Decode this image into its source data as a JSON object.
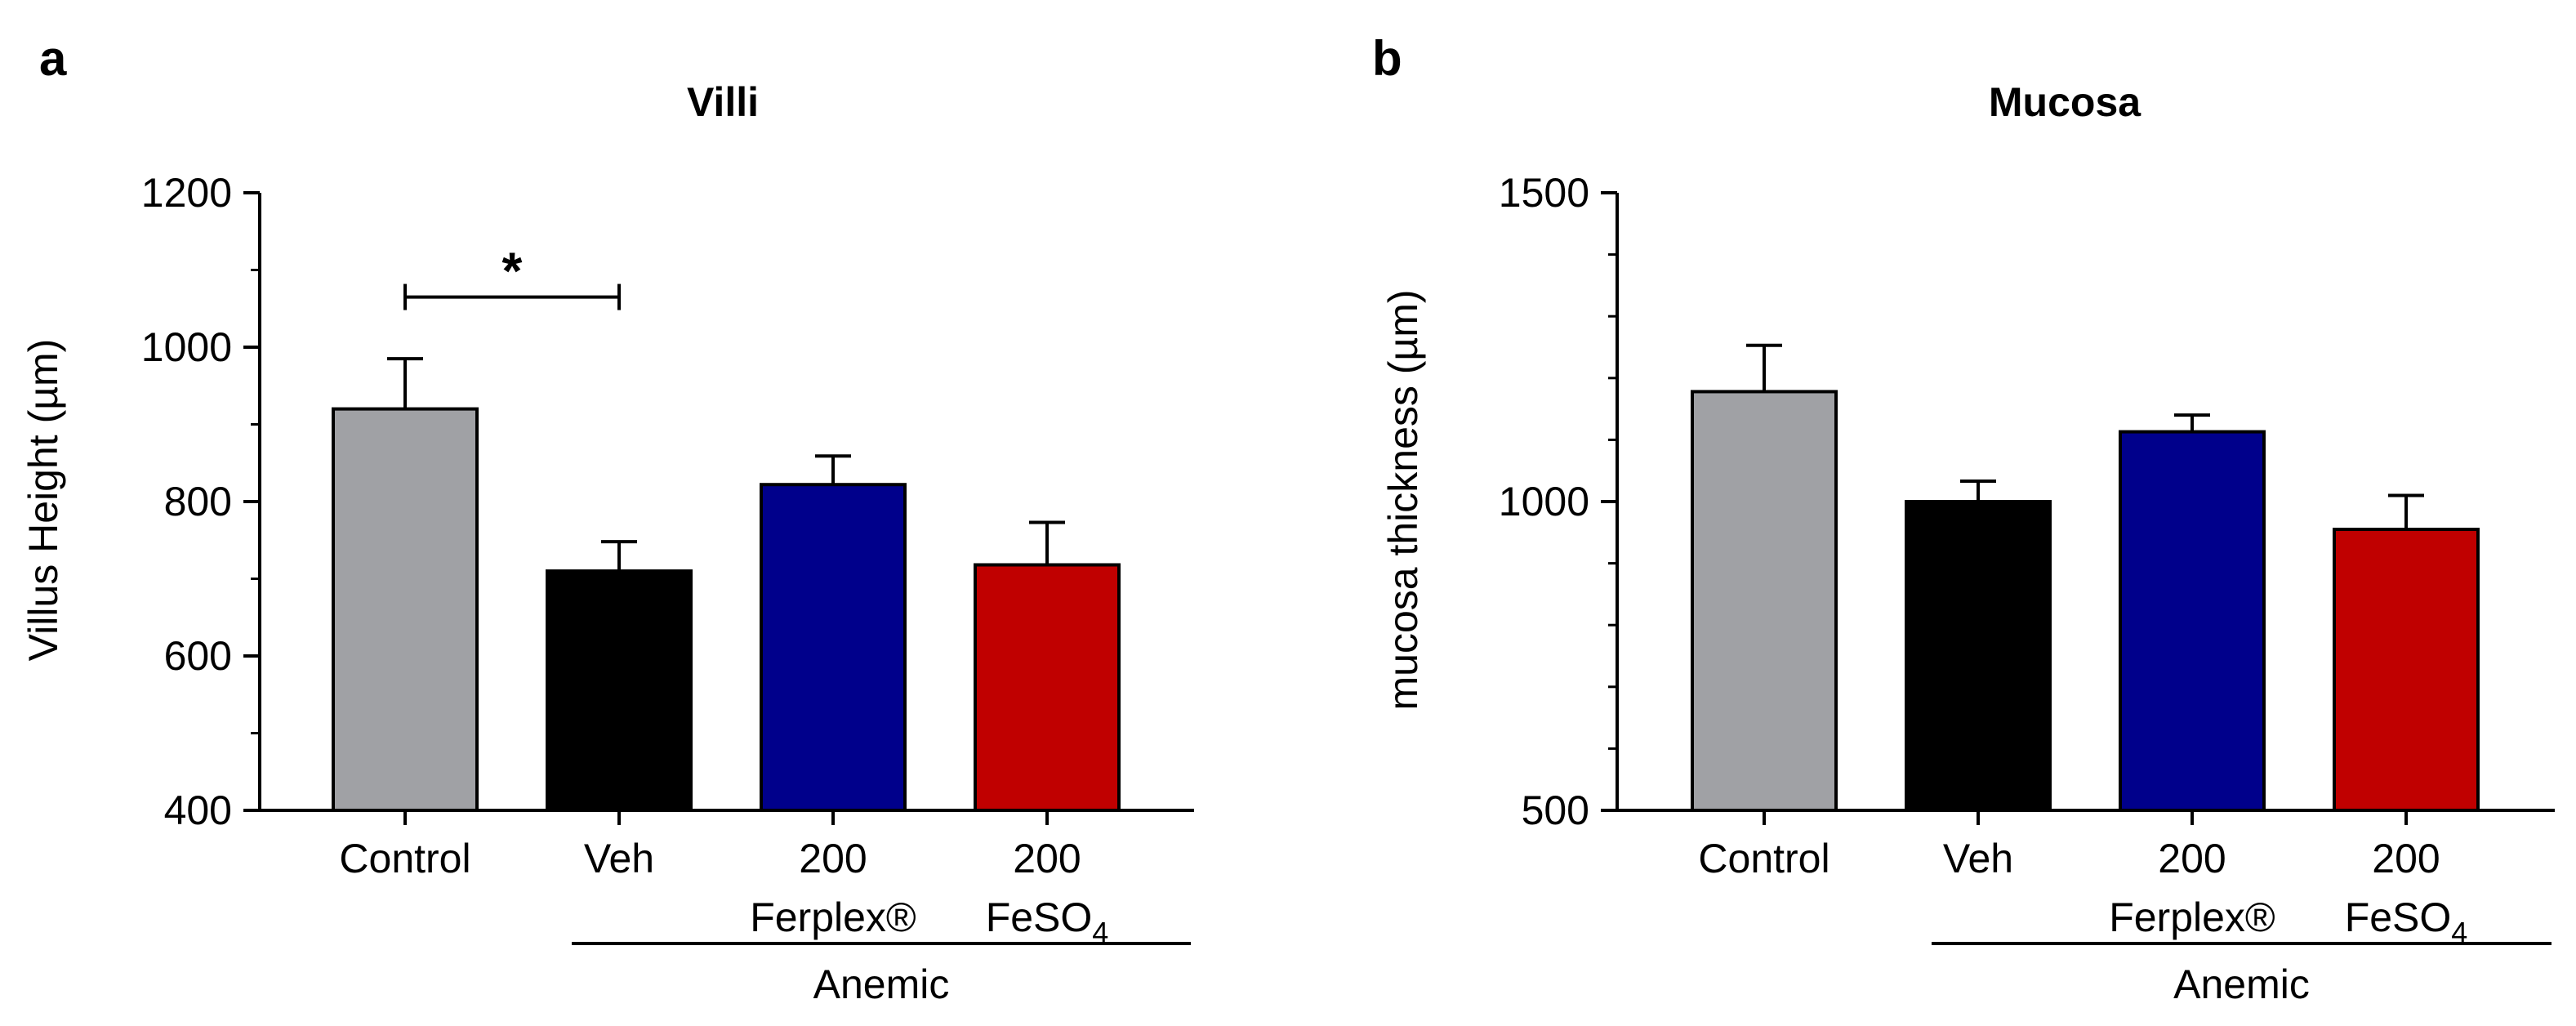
{
  "chart_data": [
    {
      "panel": "a",
      "type": "bar",
      "title": "Villi",
      "ylabel": "Villus Height (µm)",
      "xlabel": "",
      "ylim": [
        400,
        1200
      ],
      "yticks": [
        400,
        600,
        800,
        1000,
        1200
      ],
      "categories": [
        {
          "line1": "Control",
          "line2": "",
          "sub": ""
        },
        {
          "line1": "Veh",
          "line2": "",
          "sub": ""
        },
        {
          "line1": "200",
          "line2": "Ferplex®",
          "sub": ""
        },
        {
          "line1": "200",
          "line2": "FeSO",
          "sub": "4"
        }
      ],
      "values": [
        920,
        710,
        822,
        718
      ],
      "errors": [
        65,
        38,
        37,
        55
      ],
      "colors": [
        "#a0a1a5",
        "#000000",
        "#00008b",
        "#c00000"
      ],
      "group_label": "Anemic",
      "significance": {
        "from": 0,
        "to": 1,
        "label": "*",
        "y": 1065
      }
    },
    {
      "panel": "b",
      "type": "bar",
      "title": "Mucosa",
      "ylabel": "mucosa thickness (µm)",
      "xlabel": "",
      "ylim": [
        500,
        1500
      ],
      "yticks": [
        500,
        1000,
        1500
      ],
      "categories": [
        {
          "line1": "Control",
          "line2": "",
          "sub": ""
        },
        {
          "line1": "Veh",
          "line2": "",
          "sub": ""
        },
        {
          "line1": "200",
          "line2": "Ferplex®",
          "sub": ""
        },
        {
          "line1": "200",
          "line2": "FeSO",
          "sub": "4"
        }
      ],
      "values": [
        1178,
        1000,
        1113,
        955
      ],
      "errors": [
        75,
        33,
        27,
        55
      ],
      "colors": [
        "#a0a1a5",
        "#000000",
        "#00008b",
        "#c00000"
      ],
      "group_label": "Anemic"
    }
  ]
}
